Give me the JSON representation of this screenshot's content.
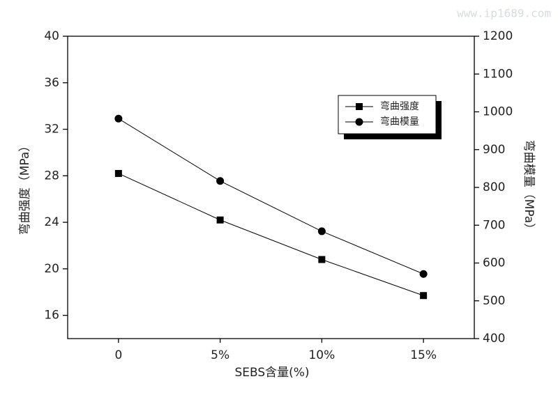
{
  "watermark": "www.ip1689.com",
  "chart_data": {
    "type": "line",
    "x_label": "SEBS含量(%)",
    "y_label": "弯曲强度（MPa）",
    "y2_label": "弯曲模量（MPa）",
    "categories": [
      "0",
      "5%",
      "10%",
      "15%"
    ],
    "series": [
      {
        "name": "弯曲强度",
        "color": "#000000",
        "marker": "square",
        "values": [
          28.2,
          24.2,
          20.8,
          17.7
        ]
      },
      {
        "name": "弯曲模量",
        "color": "#000000",
        "marker": "circle",
        "axis": "y2",
        "values": [
          982,
          817,
          684,
          571
        ]
      }
    ],
    "ylim": [
      14,
      40
    ],
    "yticks": [
      16,
      20,
      24,
      28,
      32,
      36,
      40
    ],
    "y2lim": [
      400,
      1200
    ],
    "y2ticks": [
      400,
      500,
      600,
      700,
      800,
      900,
      1000,
      1100,
      1200
    ],
    "grid": false,
    "legend": "upper right"
  }
}
